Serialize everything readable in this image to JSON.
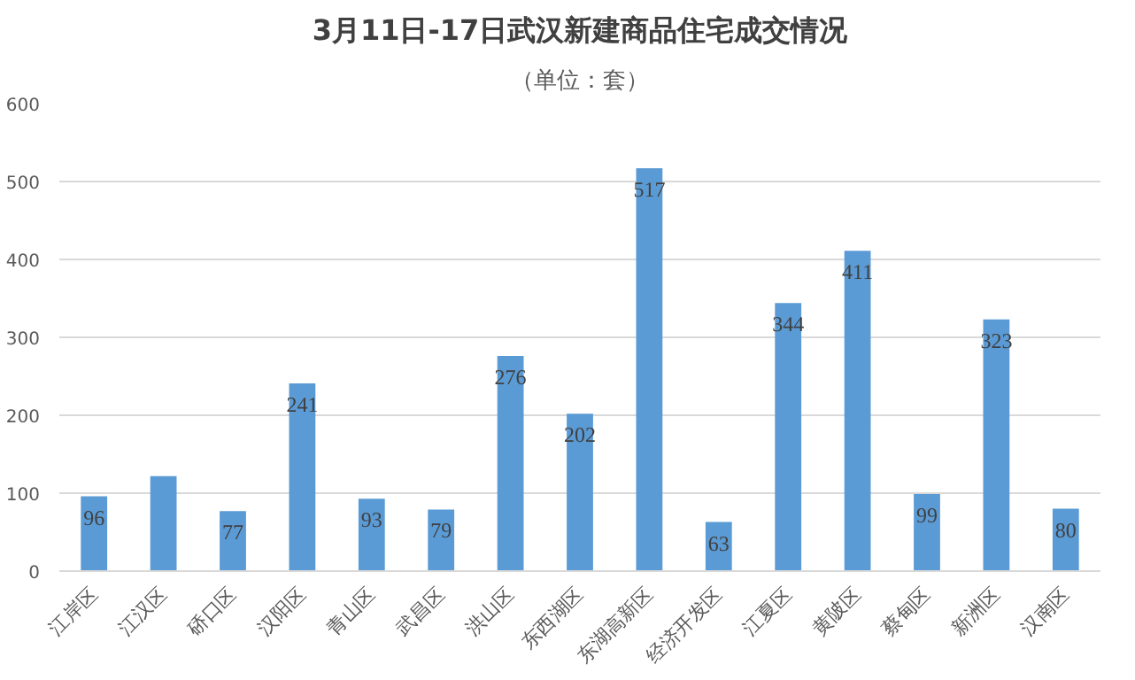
{
  "chart_data": {
    "type": "bar",
    "title": "3月11日-17日武汉新建商品住宅成交情况",
    "subtitle": "（单位：套）",
    "categories": [
      "江岸区",
      "江汉区",
      "硚口区",
      "汉阳区",
      "青山区",
      "武昌区",
      "洪山区",
      "东西湖区",
      "东湖高新区",
      "经济开发区",
      "江夏区",
      "黄陂区",
      "蔡甸区",
      "新洲区",
      "汉南区"
    ],
    "values": [
      96,
      122,
      77,
      241,
      93,
      79,
      276,
      202,
      517,
      63,
      344,
      411,
      99,
      323,
      80
    ],
    "value_labels": [
      "96",
      null,
      "77",
      "241",
      "93",
      "79",
      "276",
      "202",
      "517",
      "63",
      "344",
      "411",
      "99",
      "323",
      "80"
    ],
    "color": "#5b9bd5",
    "ylim": [
      0,
      600
    ],
    "yticks": [
      0,
      100,
      200,
      300,
      400,
      500,
      600
    ],
    "grid": "y"
  }
}
